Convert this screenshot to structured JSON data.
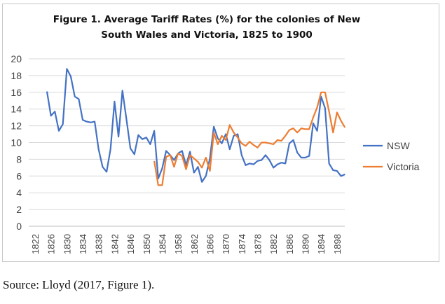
{
  "chart_data": {
    "type": "line",
    "title": "Figure 1.  Average Tariff Rates (%) for the  colonies of  New South Wales and Victoria, 1825 to 1900",
    "title_lines": [
      "Figure 1.  Average Tariff Rates (%) for the  colonies of  New",
      "South Wales and Victoria, 1825 to 1900"
    ],
    "xlabel": "",
    "ylabel": "",
    "xlim": [
      1822,
      1900
    ],
    "ylim": [
      0,
      20
    ],
    "y_ticks": [
      0,
      2,
      4,
      6,
      8,
      10,
      12,
      14,
      16,
      18,
      20
    ],
    "x_tick_labels": [
      "1822",
      "1826",
      "1830",
      "1834",
      "1838",
      "1842",
      "1846",
      "1850",
      "1854",
      "1958",
      "1862",
      "1866",
      "1870",
      "1874",
      "1878",
      "1882",
      "1886",
      "1890",
      "1894",
      "1898"
    ],
    "grid": true,
    "legend_position": "right",
    "series": [
      {
        "name": "NSW",
        "color": "#4472C4",
        "start_year": 1825,
        "values": [
          16.1,
          13.2,
          13.7,
          11.4,
          12.2,
          18.8,
          17.9,
          15.5,
          15.2,
          12.7,
          12.5,
          12.4,
          12.5,
          9.2,
          7.1,
          6.5,
          9.2,
          14.9,
          10.7,
          16.2,
          12.8,
          9.3,
          8.6,
          10.9,
          10.4,
          10.6,
          9.8,
          11.4,
          5.7,
          6.9,
          9.0,
          8.5,
          7.9,
          8.7,
          9.0,
          7.3,
          8.9,
          6.4,
          7.1,
          5.3,
          6.0,
          8.1,
          11.9,
          10.5,
          9.9,
          11.0,
          9.2,
          10.8,
          11.0,
          8.5,
          7.3,
          7.5,
          7.4,
          7.8,
          7.9,
          8.5,
          7.9,
          7.0,
          7.4,
          7.6,
          7.5,
          9.9,
          10.3,
          8.8,
          8.2,
          8.2,
          8.4,
          12.3,
          11.4,
          15.5,
          14.1,
          7.5,
          6.7,
          6.6,
          6.0,
          6.2
        ]
      },
      {
        "name": "Victoria",
        "color": "#ED7D31",
        "start_year": 1852,
        "values": [
          7.8,
          4.9,
          4.9,
          8.3,
          8.5,
          7.1,
          8.7,
          8.4,
          6.8,
          8.5,
          8.1,
          7.7,
          7.0,
          8.2,
          6.6,
          11.2,
          9.8,
          10.8,
          10.3,
          12.1,
          11.2,
          10.6,
          9.9,
          9.6,
          10.1,
          9.7,
          9.4,
          10.0,
          10.0,
          9.9,
          9.8,
          10.3,
          10.2,
          10.8,
          11.5,
          11.7,
          11.2,
          11.7,
          11.6,
          11.6,
          13.0,
          14.2,
          16.0,
          16.0,
          13.7,
          11.2,
          13.6,
          12.6,
          11.8
        ]
      }
    ]
  },
  "source": "Source: Lloyd (2017, Figure 1)."
}
